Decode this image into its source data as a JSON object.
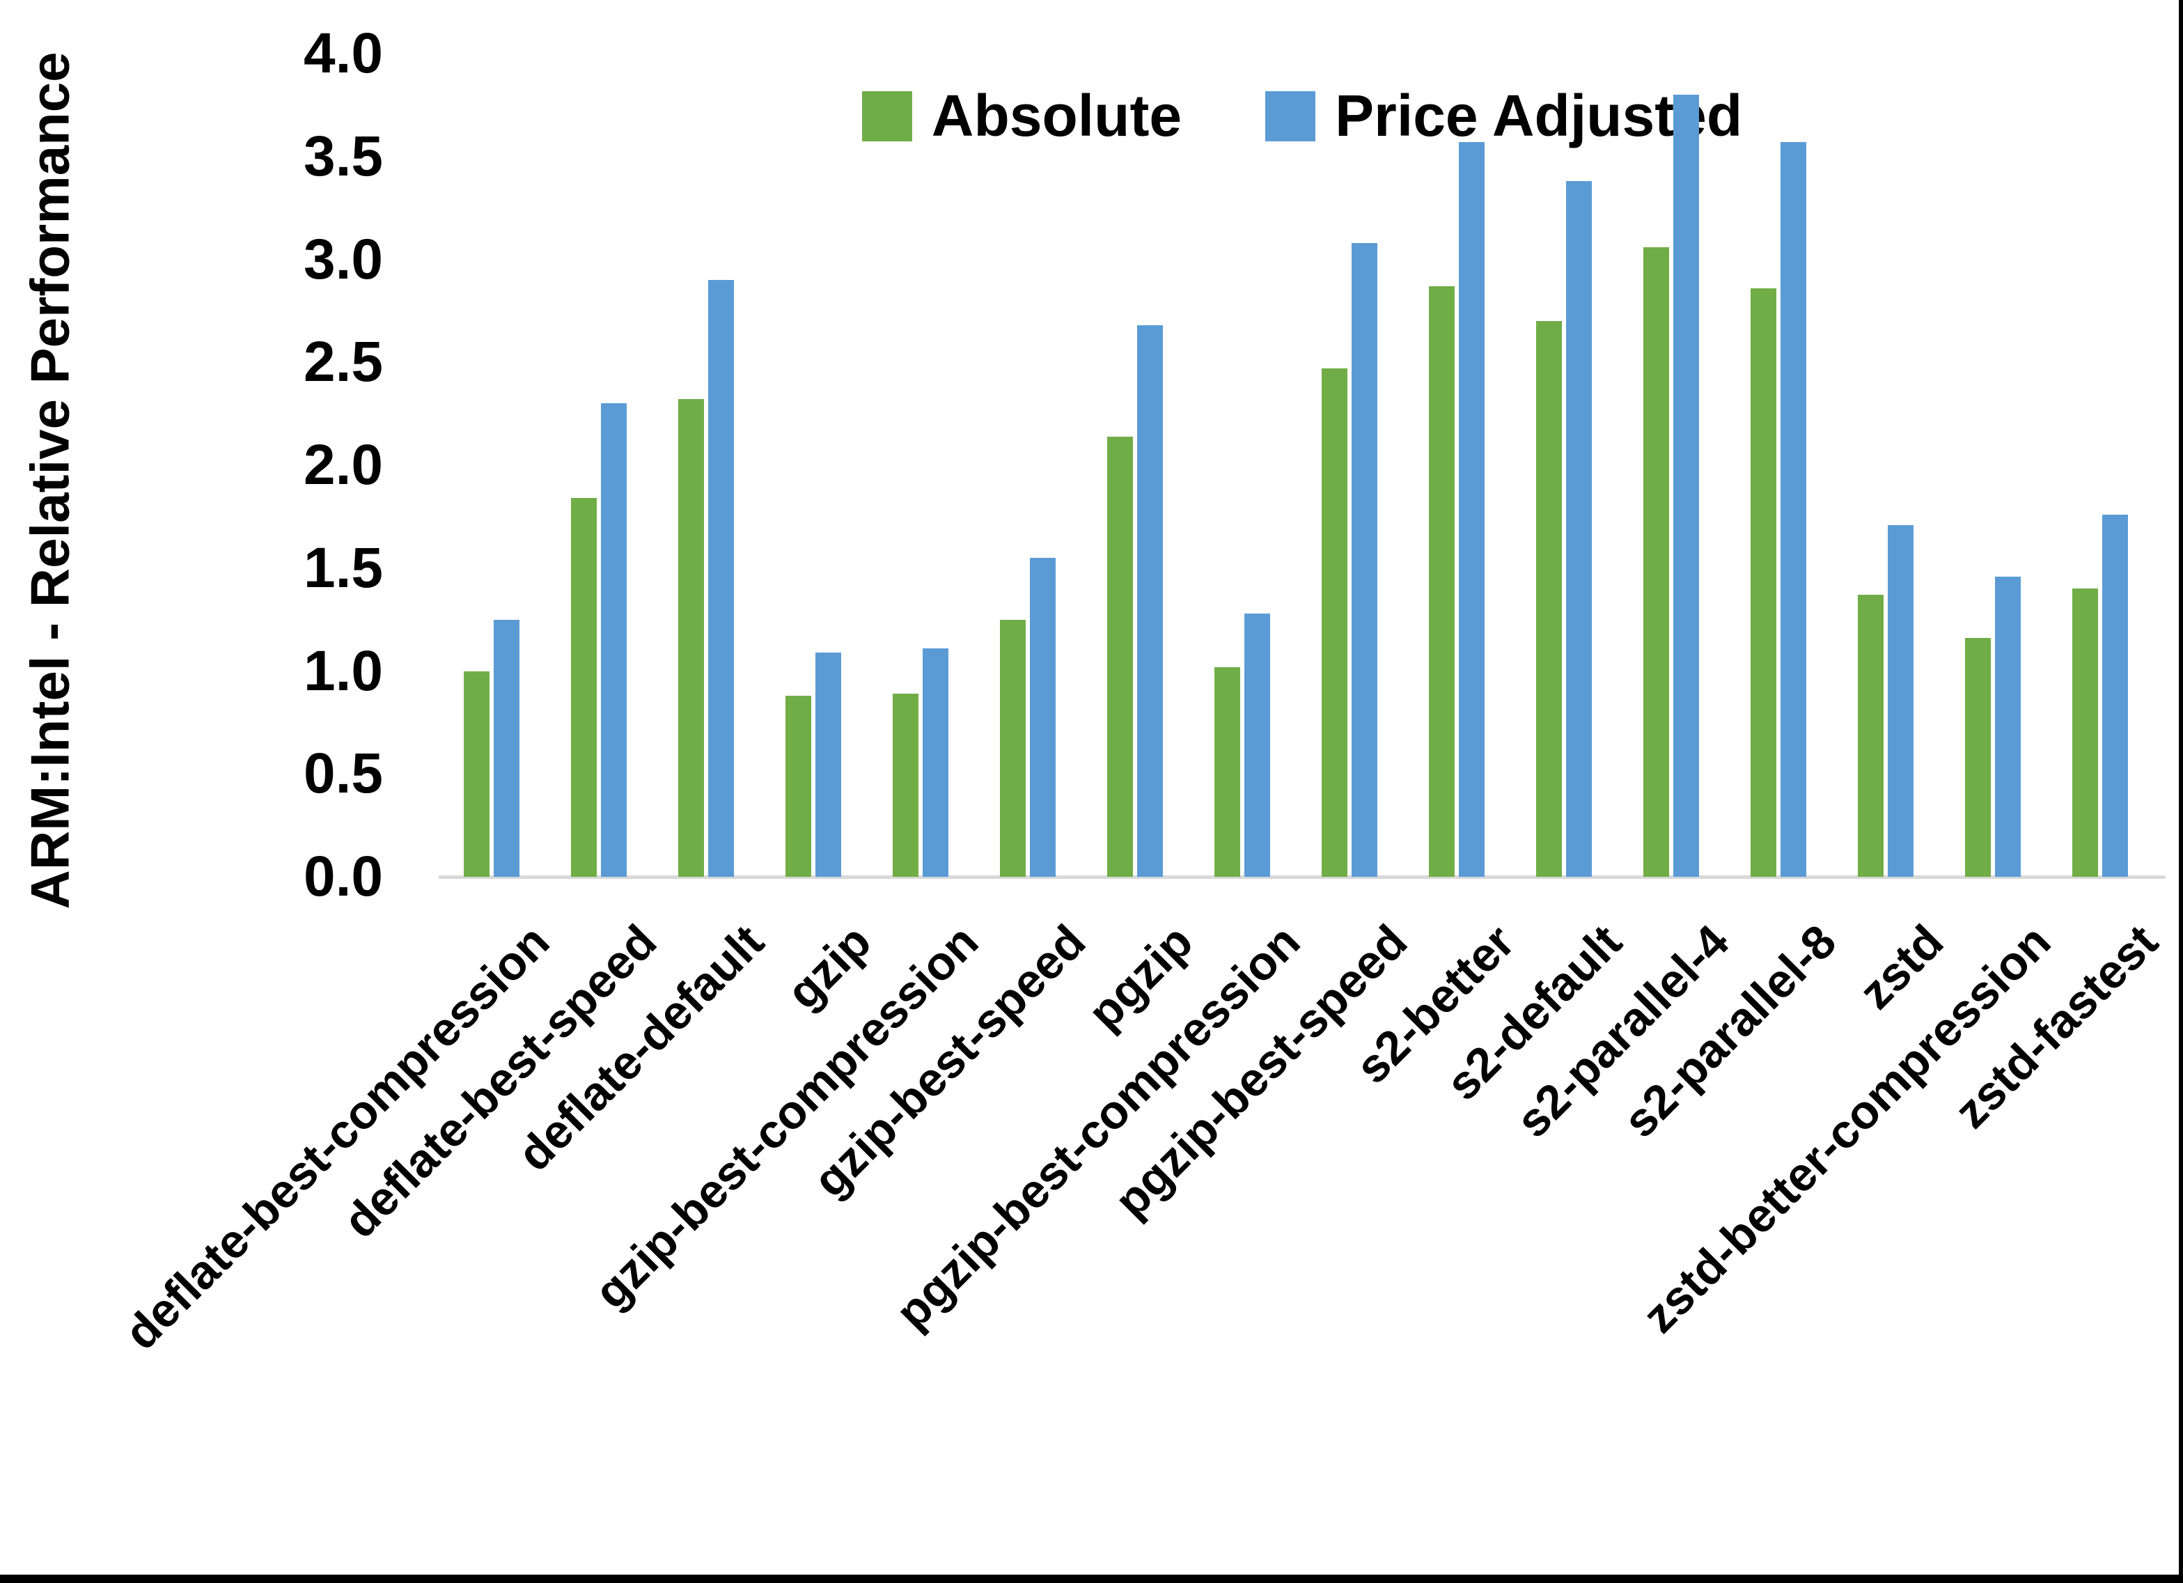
{
  "chart_data": {
    "type": "bar",
    "title": "",
    "ylabel": "ARM:Intel - Relative Performance",
    "xlabel": "",
    "ylim": [
      0.0,
      4.0
    ],
    "ytick_step": 0.5,
    "grid": false,
    "legend_position": "top-center",
    "axis_line_color": "#d9d9d9",
    "text_color": "#000000",
    "categories": [
      "deflate-best-compression",
      "deflate-best-speed",
      "deflate-default",
      "gzip",
      "gzip-best-compression",
      "gzip-best-speed",
      "pgzip",
      "pgzip-best-compression",
      "pgzip-best-speed",
      "s2-better",
      "s2-default",
      "s2-parallel-4",
      "s2-parallel-8",
      "zstd",
      "zstd-better-compression",
      "zstd-fastest"
    ],
    "series": [
      {
        "name": "Absolute",
        "color": "#70ad47",
        "values": [
          1.0,
          1.84,
          2.32,
          0.88,
          0.89,
          1.25,
          2.14,
          1.02,
          2.47,
          2.87,
          2.7,
          3.06,
          2.86,
          1.37,
          1.16,
          1.4
        ]
      },
      {
        "name": "Price Adjusted",
        "color": "#5b9bd5",
        "values": [
          1.25,
          2.3,
          2.9,
          1.09,
          1.11,
          1.55,
          2.68,
          1.28,
          3.08,
          3.57,
          3.38,
          3.8,
          3.57,
          1.71,
          1.46,
          1.76
        ]
      }
    ]
  }
}
